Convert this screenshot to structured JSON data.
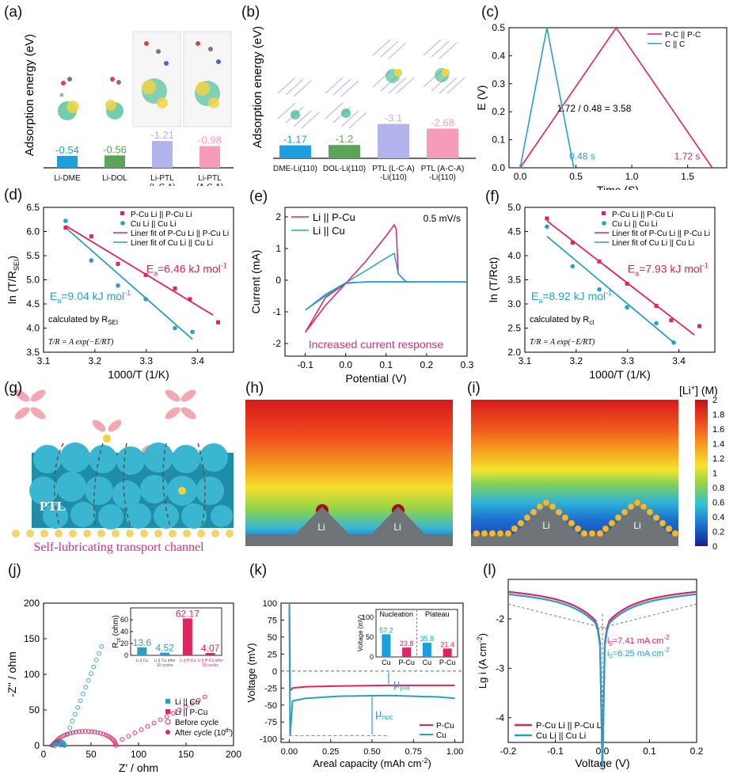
{
  "panel_labels": [
    "(a)",
    "(b)",
    "(c)",
    "(d)",
    "(e)",
    "(f)",
    "(g)",
    "(h)",
    "(i)",
    "(j)",
    "(k)",
    "(l)"
  ],
  "colors": {
    "pink": "#e0245e",
    "teal": "#2a9fc4",
    "blue": "#1ba0dd",
    "green": "#5aa55a",
    "lavender": "#b3b3ee",
    "rose": "#f79bbb",
    "slate": "#6b7a86"
  },
  "chart_data": [
    {
      "id": "a",
      "type": "bar",
      "ylabel": "Adsorption energy (eV)",
      "categories": [
        "Li-DME",
        "Li-DOL",
        "Li-PTL\n(L-C-A)",
        "Li-PTL\n(A-C-A)"
      ],
      "values": [
        -0.54,
        -0.56,
        -1.21,
        -0.98
      ],
      "value_labels": [
        "-0.54",
        "-0.56",
        "-1.21",
        "-0.98"
      ],
      "colors": [
        "#1ba0dd",
        "#5aa55a",
        "#b3b3ee",
        "#f79bbb"
      ]
    },
    {
      "id": "b",
      "type": "bar",
      "ylabel": "Adsorption energy (eV)",
      "categories": [
        "DME-Li(110)",
        "DOL-Li(110)",
        "PTL (L-C-A)\n-Li(110)",
        "PTL (A-C-A)\n-Li(110)"
      ],
      "values": [
        -1.17,
        -1.2,
        -3.1,
        -2.68
      ],
      "value_labels": [
        "-1.17",
        "-1.2",
        "-3.1",
        "-2.68"
      ],
      "colors": [
        "#1ba0dd",
        "#5aa55a",
        "#b3b3ee",
        "#f79bbb"
      ]
    },
    {
      "id": "c",
      "type": "line",
      "xlabel": "Time (S)",
      "ylabel": "E (V)",
      "xlim": [
        -0.1,
        1.85
      ],
      "ylim": [
        0,
        0.5
      ],
      "xticks": [
        "0.0",
        "0.5",
        "1.0",
        "1.5"
      ],
      "yticks": [
        "0.0",
        "0.1",
        "0.2",
        "0.3",
        "0.4",
        "0.5"
      ],
      "series": [
        {
          "name": "P-C || P-C",
          "color": "#e0245e",
          "x": [
            0,
            0.86,
            1.72
          ],
          "y": [
            0,
            0.5,
            0
          ]
        },
        {
          "name": "C || C",
          "color": "#2a9fc4",
          "x": [
            0,
            0.24,
            0.48
          ],
          "y": [
            0,
            0.5,
            0
          ]
        }
      ],
      "annotations": [
        "1.72 / 0.48 = 3.58",
        "0.48 s",
        "1.72 s"
      ]
    },
    {
      "id": "d",
      "type": "scatter",
      "xlabel": "1000/T (1/K)",
      "ylabel": "ln (T/R",
      "ylabel_sub": "SEI",
      "ylabel_tail": ")",
      "xlim": [
        3.1,
        3.47
      ],
      "ylim": [
        3.5,
        6.5
      ],
      "xticks": [
        "3.1",
        "3.2",
        "3.3",
        "3.4"
      ],
      "yticks": [
        "3.5",
        "4.0",
        "4.5",
        "5.0",
        "5.5",
        "6.0",
        "6.5"
      ],
      "series": [
        {
          "name": "P-Cu Li || P-Cu Li",
          "color": "#e0245e",
          "marker": "square",
          "x": [
            3.143,
            3.193,
            3.245,
            3.299,
            3.356,
            3.385,
            3.44
          ],
          "y": [
            6.08,
            5.9,
            5.33,
            5.1,
            4.82,
            4.6,
            4.12
          ]
        },
        {
          "name": "Cu Li || Cu Li",
          "color": "#2a9fc4",
          "marker": "circle",
          "x": [
            3.143,
            3.193,
            3.245,
            3.299,
            3.356,
            3.39
          ],
          "y": [
            6.22,
            5.4,
            4.88,
            4.6,
            4.0,
            3.92
          ]
        }
      ],
      "fits": [
        {
          "name": "Liner fit of P-Cu Li || P-Cu Li",
          "color": "#e0245e",
          "x": [
            3.143,
            3.43
          ],
          "y": [
            6.12,
            4.27
          ]
        },
        {
          "name": "Liner fit of Cu Li || Cu Li",
          "color": "#2a9fc4",
          "x": [
            3.143,
            3.39
          ],
          "y": [
            6.08,
            3.77
          ]
        }
      ],
      "ea_pink": "6.46 kJ mol",
      "ea_blue": "9.04 kJ mol",
      "calc_note": "calculated by R",
      "calc_sub": "SEI"
    },
    {
      "id": "e",
      "type": "line",
      "xlabel": "Potential (V)",
      "ylabel": "Current (mA)",
      "xlim": [
        -0.15,
        0.3
      ],
      "ylim": [
        -2.4,
        2.3
      ],
      "xticks": [
        "-0.1",
        "0.0",
        "0.1",
        "0.2",
        "0.3"
      ],
      "yticks": [
        "-2",
        "-1",
        "0",
        "1",
        "2"
      ],
      "series": [
        {
          "name": "Li || P-Cu",
          "color": "#e0245e",
          "x": [
            -0.1,
            -0.05,
            0,
            0.05,
            0.1,
            0.12,
            0.125,
            0.13,
            0.15,
            0.3,
            0.15,
            0.05,
            0,
            -0.05,
            -0.1
          ],
          "y": [
            -1.65,
            -0.8,
            -0.1,
            0.6,
            1.4,
            1.75,
            1.6,
            0.2,
            -0.05,
            -0.05,
            -0.05,
            -0.05,
            -0.1,
            -0.55,
            -1.65
          ]
        },
        {
          "name": "Li || Cu",
          "color": "#2a9fc4",
          "x": [
            -0.1,
            -0.05,
            0,
            0.05,
            0.1,
            0.12,
            0.13,
            0.15,
            0.3,
            0.15,
            0.05,
            0,
            -0.05,
            -0.1
          ],
          "y": [
            -0.95,
            -0.5,
            -0.08,
            0.3,
            0.7,
            0.85,
            0.2,
            -0.06,
            -0.06,
            -0.06,
            -0.06,
            -0.08,
            -0.45,
            -0.95
          ]
        }
      ],
      "annotation": "0.5 mV/s",
      "caption": "Increased current response"
    },
    {
      "id": "f",
      "type": "scatter",
      "xlabel": "1000/T (1/K)",
      "ylabel": "ln (T/Rct)",
      "xlim": [
        3.1,
        3.47
      ],
      "ylim": [
        2.0,
        5.0
      ],
      "xticks": [
        "3.1",
        "3.2",
        "3.3",
        "3.4"
      ],
      "yticks": [
        "2.0",
        "2.5",
        "3.0",
        "3.5",
        "4.0",
        "4.5",
        "5.0"
      ],
      "series": [
        {
          "name": "P-Cu Li || P-Cu Li",
          "color": "#e0245e",
          "marker": "square",
          "x": [
            3.143,
            3.193,
            3.245,
            3.299,
            3.356,
            3.385,
            3.44
          ],
          "y": [
            4.77,
            4.27,
            3.88,
            3.42,
            2.96,
            2.66,
            2.54
          ]
        },
        {
          "name": "Cu Li || Cu Li",
          "color": "#2a9fc4",
          "marker": "circle",
          "x": [
            3.143,
            3.193,
            3.245,
            3.299,
            3.356,
            3.39
          ],
          "y": [
            4.6,
            3.78,
            3.3,
            2.93,
            2.6,
            2.2
          ]
        }
      ],
      "fits": [
        {
          "name": "Liner fit of P-Cu Li || P-Cu Li",
          "color": "#e0245e",
          "x": [
            3.143,
            3.43
          ],
          "y": [
            4.72,
            2.36
          ]
        },
        {
          "name": "Liner fit of Cu Li || Cu Li",
          "color": "#2a9fc4",
          "x": [
            3.143,
            3.39
          ],
          "y": [
            4.4,
            2.2
          ]
        }
      ],
      "ea_pink": "7.93 kJ mol",
      "ea_blue": "8.92 kJ mol",
      "calc_note": "calculated by R",
      "calc_sub": "ct"
    },
    {
      "id": "i_colorbar",
      "type": "heatmap",
      "title": "[Li",
      "title_sup": "+",
      "title_tail": "] (M)",
      "ticks": [
        "2",
        "1.8",
        "1.6",
        "1.4",
        "1.2",
        "1",
        "0.8",
        "0.6",
        "0.4",
        "0.2",
        "0"
      ],
      "range": [
        0,
        2
      ],
      "panel_text": [
        "Li",
        "Li"
      ]
    },
    {
      "id": "j",
      "type": "scatter",
      "xlabel": "Z' / ohm",
      "ylabel": "-Z'' / ohm",
      "xlim": [
        0,
        200
      ],
      "ylim": [
        0,
        200
      ],
      "xticks": [
        "0",
        "50",
        "100",
        "150",
        "200"
      ],
      "yticks": [
        "0",
        "50",
        "100",
        "150",
        "200"
      ],
      "series": [
        {
          "name": "Li || Cu",
          "color": "#2a9fc4",
          "marker": "square"
        },
        {
          "name": "Li || P-Cu",
          "color": "#e0245e",
          "marker": "square"
        },
        {
          "name": "Before cycle",
          "color": "#e0245e",
          "marker": "open-circle"
        },
        {
          "name": "After cycle (10",
          "color": "#e0245e",
          "marker": "circle",
          "sup": "th",
          "tail": ")"
        }
      ],
      "inset": {
        "type": "bar",
        "ylabel": "R",
        "ylabel_sub": "ct",
        "ylabel_tail": " (ohm)",
        "ylim": [
          0,
          80
        ],
        "yticks": [
          "0",
          "20",
          "40",
          "60"
        ],
        "values": [
          13.6,
          4.52,
          62.17,
          4.07
        ],
        "labels": [
          "13.6",
          "4.52",
          "62.17",
          "4.07"
        ],
        "categories": [
          "Li || Cu",
          "Li || Cu after\n10 cycles",
          "Li || P-Cu",
          "Li || P-Cu after\n10 cycles"
        ],
        "colors": [
          "#2a9fc4",
          "#2a9fc4",
          "#e0245e",
          "#e0245e"
        ]
      }
    },
    {
      "id": "k",
      "type": "line",
      "xlabel": "Areal capacity (mAh cm",
      "xlabel_sup": "-2",
      "xlabel_tail": ")",
      "ylabel": "Voltage (mV)",
      "xlim": [
        -0.05,
        1.05
      ],
      "ylim": [
        -105,
        100
      ],
      "xticks": [
        "0.00",
        "0.25",
        "0.50",
        "0.75",
        "1.00"
      ],
      "yticks": [
        "-100",
        "-75",
        "-50",
        "-25",
        "0",
        "25",
        "50",
        "75",
        "100"
      ],
      "series": [
        {
          "name": "P-Cu",
          "color": "#e0245e",
          "x": [
            0,
            0.005,
            0.02,
            0.1,
            0.3,
            0.6,
            1.0
          ],
          "y": [
            100,
            -29,
            -25,
            -23,
            -22,
            -21,
            -21
          ]
        },
        {
          "name": "Cu",
          "color": "#2a9fc4",
          "x": [
            0,
            0.005,
            0.02,
            0.1,
            0.3,
            0.6,
            0.9,
            1.0
          ],
          "y": [
            100,
            -95,
            -44,
            -40,
            -37,
            -36,
            -38,
            -40
          ]
        }
      ],
      "labels": [
        "μ",
        "pla",
        "μ",
        "nuc"
      ],
      "inset": {
        "ylabel": "Voltage (mV)",
        "ylim": [
          0,
          100
        ],
        "yticks": [
          "0",
          "50",
          "100"
        ],
        "groups": [
          "Nucleation",
          "Plateau"
        ],
        "categories": [
          "Cu",
          "P-Cu",
          "Cu",
          "P-Cu"
        ],
        "values": [
          57.2,
          23.8,
          35.8,
          21.4
        ],
        "labels": [
          "57.2",
          "23.8",
          "35.8",
          "21.4"
        ],
        "colors": [
          "#1ba0dd",
          "#e0245e",
          "#1ba0dd",
          "#e0245e"
        ]
      }
    },
    {
      "id": "l",
      "type": "line",
      "xlabel": "Voltage (V)",
      "ylabel": "Lg i (A cm",
      "ylabel_sup": "-2",
      "ylabel_tail": ")",
      "xlim": [
        -0.2,
        0.2
      ],
      "ylim": [
        -4.5,
        -1.2
      ],
      "xticks": [
        "-0.2",
        "-0.1",
        "0.0",
        "0.1",
        "0.2"
      ],
      "yticks": [
        "-2",
        "-3",
        "-4"
      ],
      "series": [
        {
          "name": "P-Cu Li || P-Cu Li",
          "color": "#e0245e"
        },
        {
          "name": "Cu Li || Cu Li",
          "color": "#2a9fc4"
        }
      ],
      "i0_pink": "7.41 mA cm",
      "i0_blue": "6.25 mA cm"
    }
  ],
  "g_text": {
    "ptl": "PTL",
    "caption": "Self-lubricating transport channel"
  }
}
